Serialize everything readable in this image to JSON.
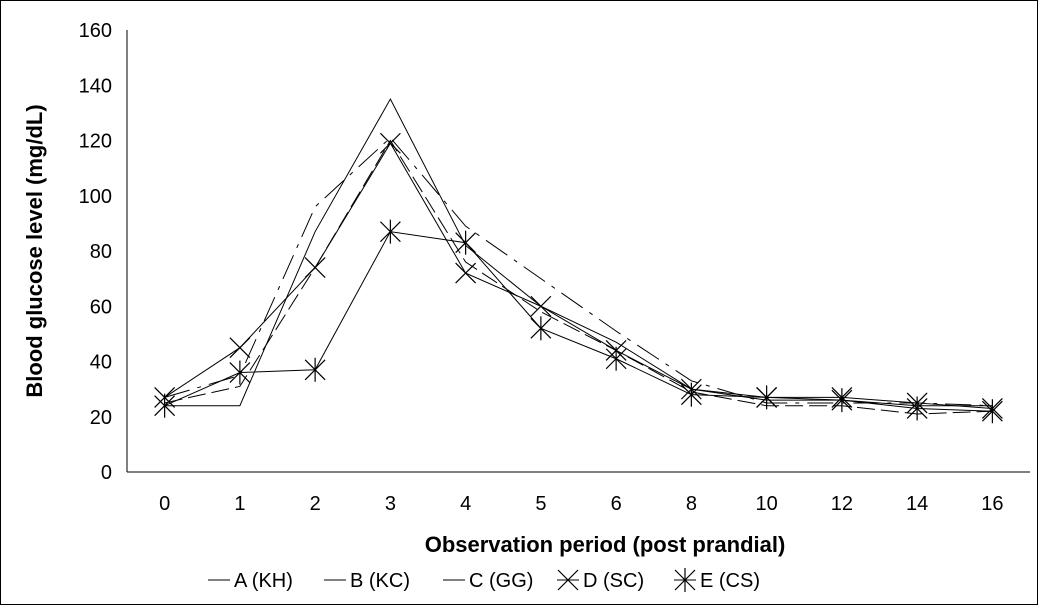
{
  "chart_data": {
    "type": "line",
    "xlabel": "Observation period (post prandial)",
    "ylabel": "Blood glucose level (mg/dL)",
    "categories": [
      "0",
      "1",
      "2",
      "3",
      "4",
      "5",
      "6",
      "8",
      "10",
      "12",
      "14",
      "16"
    ],
    "ylim": [
      0,
      160
    ],
    "yticks": [
      "0",
      "20",
      "40",
      "60",
      "80",
      "100",
      "120",
      "140",
      "160"
    ],
    "grid": false,
    "legend_position": "bottom",
    "series": [
      {
        "name": "A (KH)",
        "marker": "none",
        "values": [
          24,
          24,
          87,
          135,
          82,
          60,
          47,
          30,
          26,
          26,
          24,
          24
        ]
      },
      {
        "name": "B (KC)",
        "marker": "none",
        "values": [
          25,
          31,
          74,
          120,
          76,
          58,
          44,
          29,
          24,
          24,
          21,
          22
        ]
      },
      {
        "name": "C (GG)",
        "marker": "none",
        "values": [
          27,
          35,
          96,
          121,
          89,
          70,
          51,
          33,
          25,
          25,
          25,
          24
        ]
      },
      {
        "name": "D (SC)",
        "marker": "x",
        "values": [
          27,
          45,
          74,
          119,
          72,
          60,
          44,
          30,
          27,
          27,
          25,
          23
        ]
      },
      {
        "name": "E (CS)",
        "marker": "asterisk",
        "values": [
          24,
          36,
          37,
          87,
          83,
          52,
          41,
          28,
          27,
          26,
          23,
          22
        ]
      }
    ]
  }
}
